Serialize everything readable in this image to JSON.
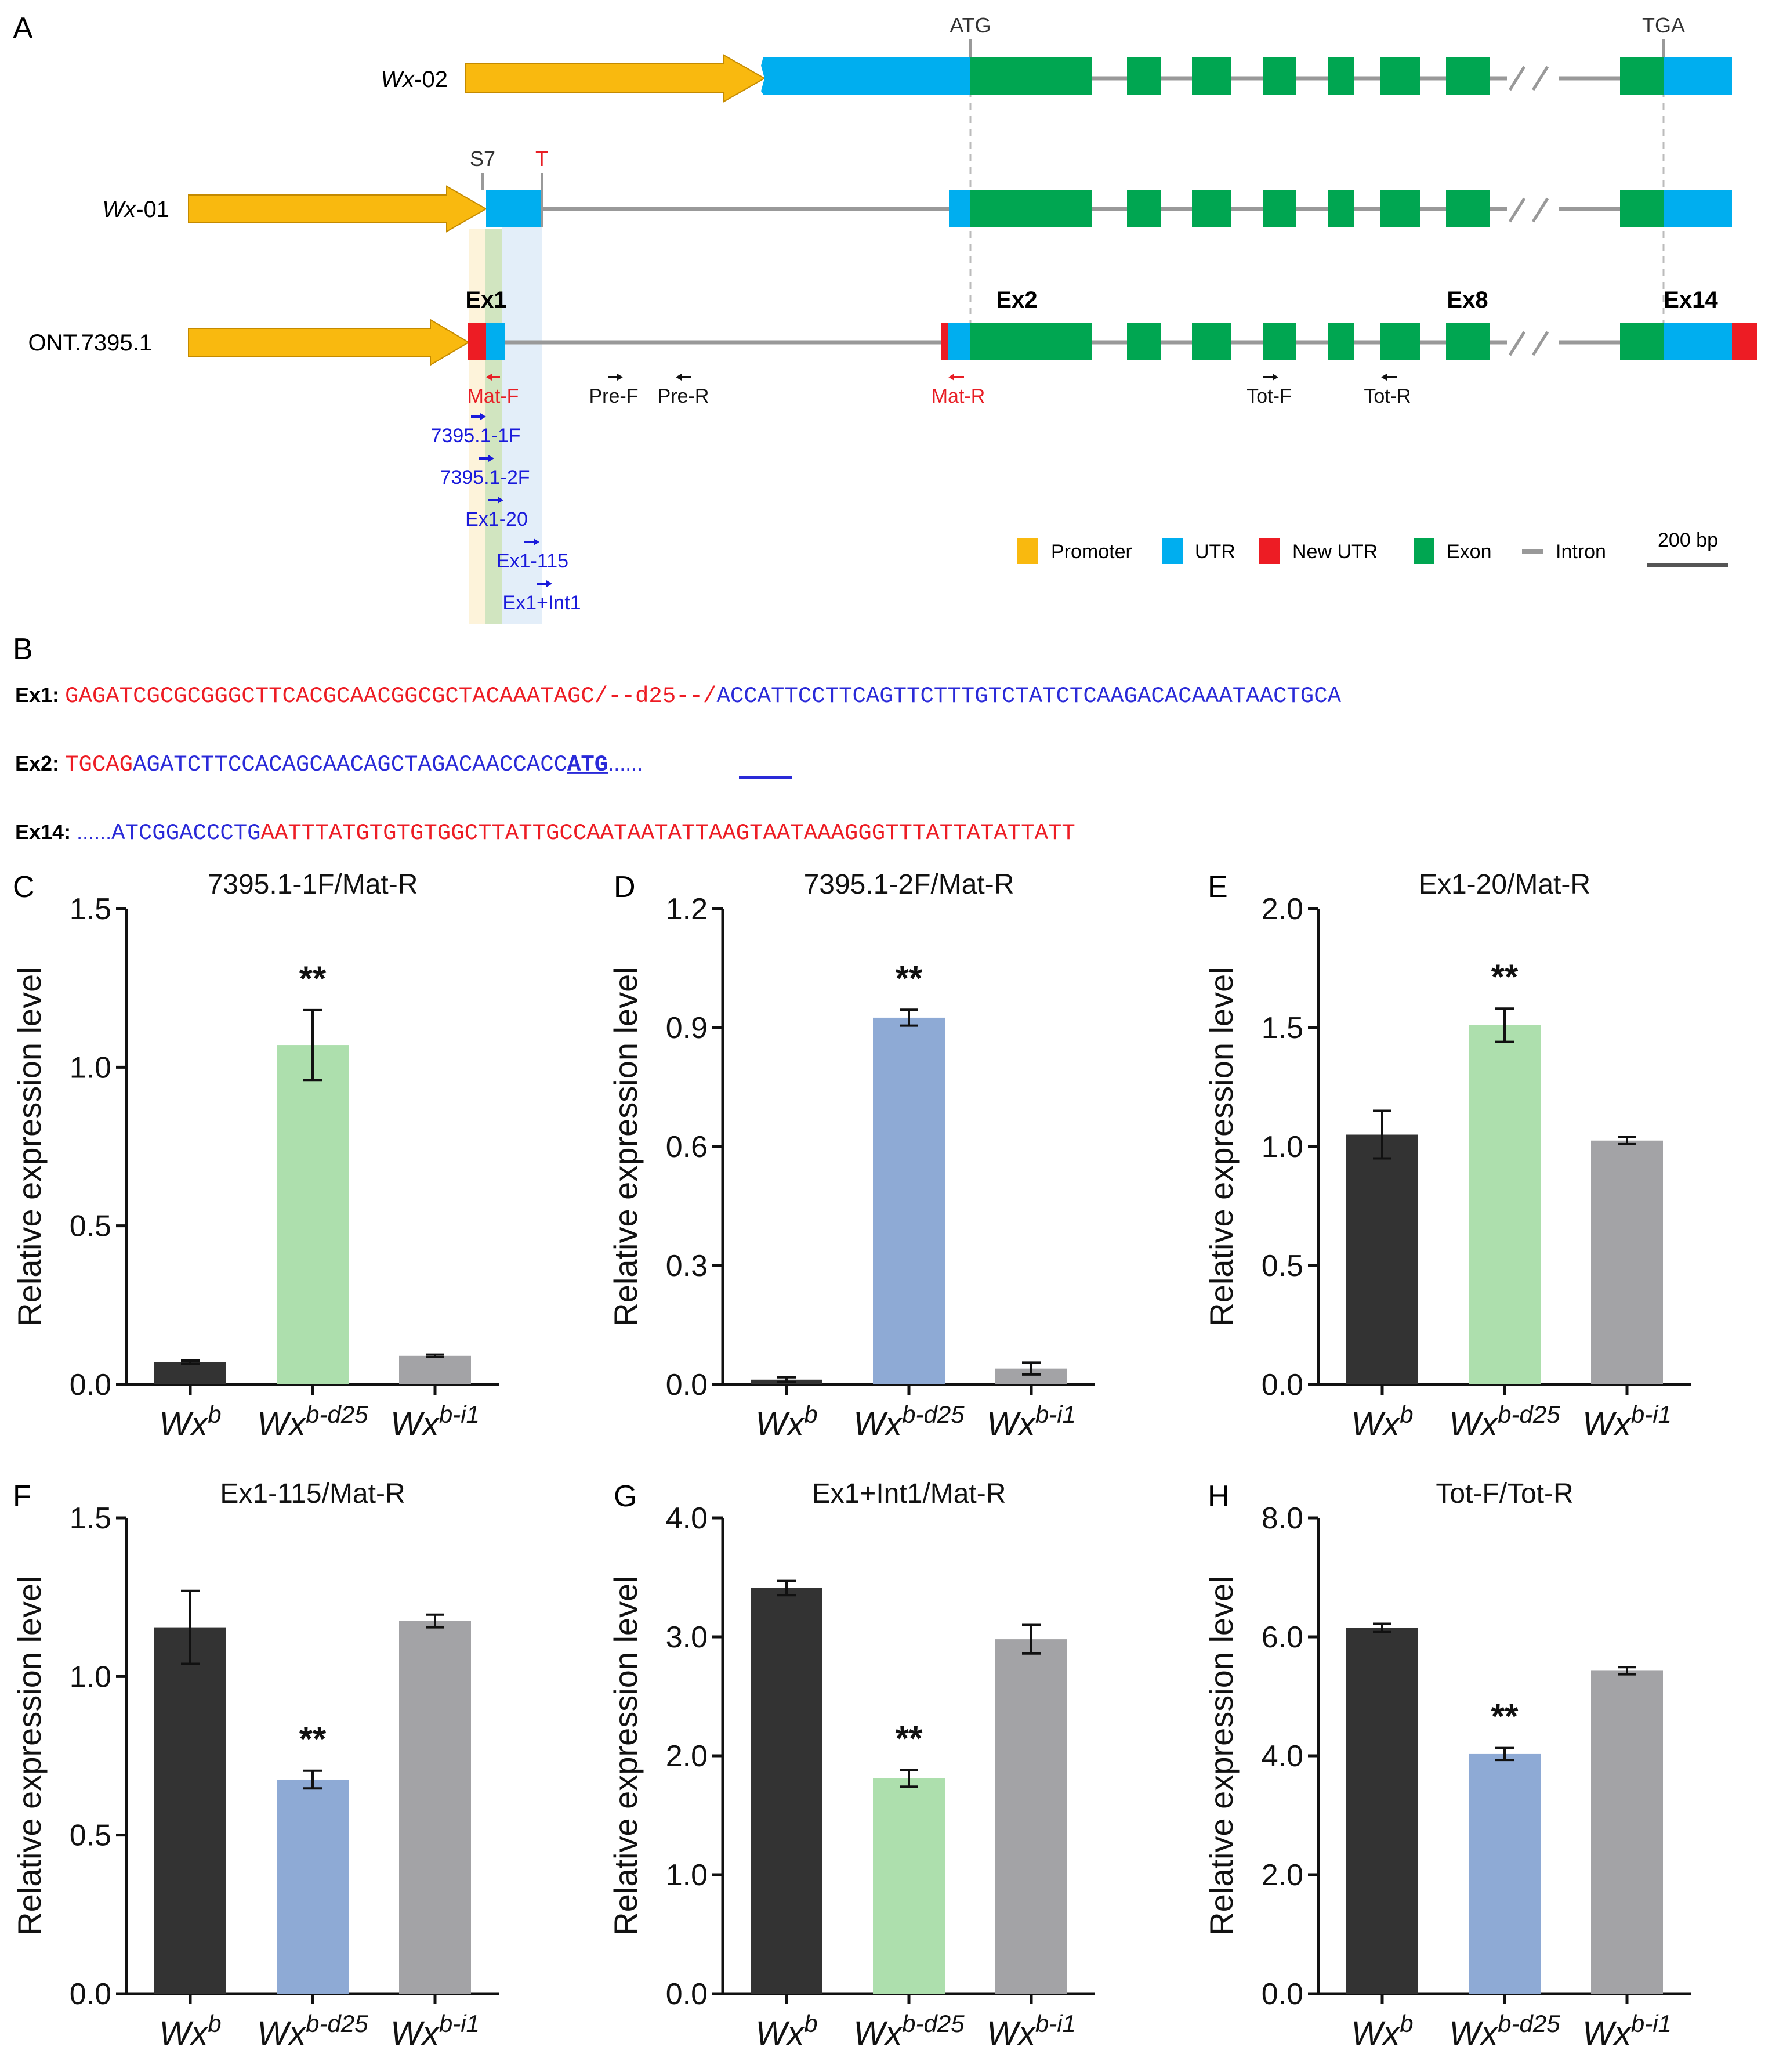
{
  "panel_labels": {
    "A": "A",
    "B": "B",
    "C": "C",
    "D": "D",
    "E": "E",
    "F": "F",
    "G": "G",
    "H": "H"
  },
  "gene_structure": {
    "tracks": [
      {
        "name_italic": "Wx",
        "name_rest": "-02"
      },
      {
        "name_italic": "Wx",
        "name_rest": "-01"
      },
      {
        "name_italic": "",
        "name_rest": "ONT.7395.1"
      }
    ],
    "markers": {
      "atg": "ATG",
      "tga": "TGA",
      "s7": "S7",
      "t": "T"
    },
    "exon_labels": {
      "ex1": "Ex1",
      "ex2": "Ex2",
      "ex8": "Ex8",
      "ex14": "Ex14"
    },
    "primers": {
      "mat_f": "Mat-F",
      "pre_f": "Pre-F",
      "pre_r": "Pre-R",
      "mat_r": "Mat-R",
      "tot_f": "Tot-F",
      "tot_r": "Tot-R",
      "p7395_1f": "7395.1-1F",
      "p7395_2f": "7395.1-2F",
      "ex1_20": "Ex1-20",
      "ex1_115": "Ex1-115",
      "ex1_int1": "Ex1+Int1"
    },
    "legend": {
      "promoter": "Promoter",
      "utr": "UTR",
      "new_utr": "New UTR",
      "exon": "Exon",
      "intron": "Intron",
      "scale": "200 bp"
    },
    "colors": {
      "promoter": "#f9b90f",
      "utr": "#00aeef",
      "new_utr": "#ed1c24",
      "exon": "#00a651",
      "intron": "#999999",
      "primer_red": "#e81e25",
      "primer_blue": "#1a1adb"
    }
  },
  "sequences": {
    "ex1": {
      "label": "Ex1:",
      "red": "GAGATCGCGCGGGCTTCACGCAACGGCGCTACAAATAGC/--d25--/",
      "blue": "ACCATTCCTTCAGTTCTTTGTCTATCTCAAGACACAAATAACTGCA"
    },
    "ex2": {
      "label": "Ex2:",
      "red": "TGCAG",
      "blue": "AGATCTTCCACAGCAACAGCTAGACAACCACC",
      "atg": "ATG",
      "dots": "......"
    },
    "ex14": {
      "label": "Ex14:",
      "dots": "......",
      "blue": "ATCGGACCCTG",
      "red": "AATTTATGTGTGTGGCTTATTGCCAATAATATTAAGTAATAAAGGGTTTATTATATTATT"
    }
  },
  "chart_data": [
    {
      "panel": "C",
      "type": "bar",
      "title": "7395.1-1F/Mat-R",
      "ylabel": "Relative expression level",
      "categories": [
        "Wx^b",
        "Wx^b-d25",
        "Wx^b-i1"
      ],
      "values": [
        0.07,
        1.07,
        0.09
      ],
      "errors": [
        0.005,
        0.11,
        0.004
      ],
      "ylim": [
        0,
        1.5
      ],
      "ticks": [
        "0.0",
        "0.5",
        "1.0",
        "1.5"
      ],
      "significance": [
        "",
        "**",
        ""
      ],
      "colors": [
        "#333333",
        "#addfad",
        "#a3a3a6"
      ]
    },
    {
      "panel": "D",
      "type": "bar",
      "title": "7395.1-2F/Mat-R",
      "ylabel": "Relative expression level",
      "categories": [
        "Wx^b",
        "Wx^b-d25",
        "Wx^b-i1"
      ],
      "values": [
        0.012,
        0.925,
        0.04
      ],
      "errors": [
        0.006,
        0.02,
        0.015
      ],
      "ylim": [
        0,
        1.2
      ],
      "ticks": [
        "0.0",
        "0.3",
        "0.6",
        "0.9",
        "1.2"
      ],
      "significance": [
        "",
        "**",
        ""
      ],
      "colors": [
        "#333333",
        "#8eaad5",
        "#a3a3a6"
      ]
    },
    {
      "panel": "E",
      "type": "bar",
      "title": "Ex1-20/Mat-R",
      "ylabel": "Relative expression level",
      "categories": [
        "Wx^b",
        "Wx^b-d25",
        "Wx^b-i1"
      ],
      "values": [
        1.05,
        1.51,
        1.025
      ],
      "errors": [
        0.1,
        0.07,
        0.015
      ],
      "ylim": [
        0,
        2.0
      ],
      "ticks": [
        "0.0",
        "0.5",
        "1.0",
        "1.5",
        "2.0"
      ],
      "significance": [
        "",
        "**",
        ""
      ],
      "colors": [
        "#333333",
        "#addfad",
        "#a3a3a6"
      ]
    },
    {
      "panel": "F",
      "type": "bar",
      "title": "Ex1-115/Mat-R",
      "ylabel": "Relative expression level",
      "categories": [
        "Wx^b",
        "Wx^b-d25",
        "Wx^b-i1"
      ],
      "values": [
        1.155,
        0.675,
        1.175
      ],
      "errors": [
        0.115,
        0.028,
        0.02
      ],
      "ylim": [
        0,
        1.5
      ],
      "ticks": [
        "0.0",
        "0.5",
        "1.0",
        "1.5"
      ],
      "significance": [
        "",
        "**",
        ""
      ],
      "colors": [
        "#333333",
        "#8eaad5",
        "#a3a3a6"
      ]
    },
    {
      "panel": "G",
      "type": "bar",
      "title": "Ex1+Int1/Mat-R",
      "ylabel": "Relative expression level",
      "categories": [
        "Wx^b",
        "Wx^b-d25",
        "Wx^b-i1"
      ],
      "values": [
        3.41,
        1.81,
        2.98
      ],
      "errors": [
        0.06,
        0.07,
        0.12
      ],
      "ylim": [
        0,
        4.0
      ],
      "ticks": [
        "0.0",
        "1.0",
        "2.0",
        "3.0",
        "4.0"
      ],
      "significance": [
        "",
        "**",
        ""
      ],
      "colors": [
        "#333333",
        "#addfad",
        "#a3a3a6"
      ]
    },
    {
      "panel": "H",
      "type": "bar",
      "title": "Tot-F/Tot-R",
      "ylabel": "Relative expression level",
      "categories": [
        "Wx^b",
        "Wx^b-d25",
        "Wx^b-i1"
      ],
      "values": [
        6.15,
        4.03,
        5.43
      ],
      "errors": [
        0.07,
        0.1,
        0.06
      ],
      "ylim": [
        0,
        8.0
      ],
      "ticks": [
        "0.0",
        "2.0",
        "4.0",
        "6.0",
        "8.0"
      ],
      "significance": [
        "",
        "**",
        ""
      ],
      "colors": [
        "#333333",
        "#8eaad5",
        "#a3a3a6"
      ]
    }
  ],
  "category_labels": [
    {
      "base": "Wx",
      "sup": "b"
    },
    {
      "base": "Wx",
      "sup": "b-d25"
    },
    {
      "base": "Wx",
      "sup": "b-i1"
    }
  ]
}
